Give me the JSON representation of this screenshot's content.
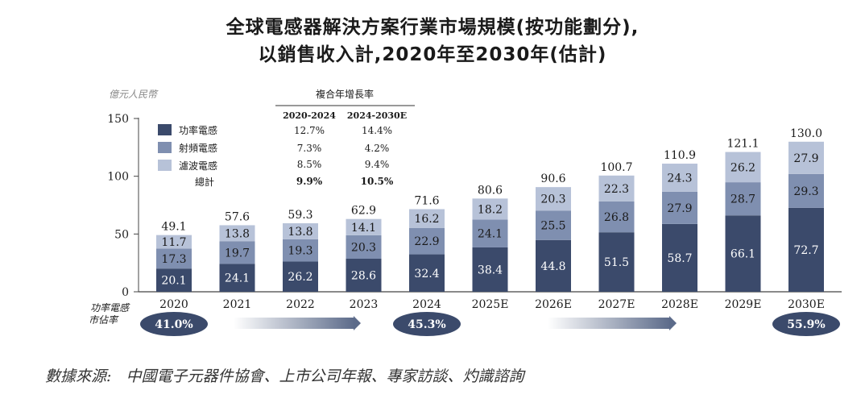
{
  "title_line1": "全球電感器解決方案行業市場規模(按功能劃分),",
  "title_line2": "以銷售收入計,2020年至2030年(估計)",
  "source_label": "數據來源:",
  "source_text": "中國電子元器件協會、上市公司年報、專家訪談、灼識諮詢",
  "colors": {
    "power": "#3b4a6b",
    "rf": "#7f8fb0",
    "filter": "#b7c2d8",
    "axis": "#444444",
    "arrow_dark": "#5c6b8a"
  },
  "chart_data": {
    "type": "bar",
    "stacked": true,
    "title": "",
    "ylabel": "億元人民幣",
    "ylim": [
      0,
      150
    ],
    "yticks": [
      0,
      50,
      100,
      150
    ],
    "categories": [
      "2020",
      "2021",
      "2022",
      "2023",
      "2024",
      "2025E",
      "2026E",
      "2027E",
      "2028E",
      "2029E",
      "2030E"
    ],
    "series": [
      {
        "name": "功率電感",
        "values": [
          20.1,
          24.1,
          26.2,
          28.6,
          32.4,
          38.4,
          44.8,
          51.5,
          58.7,
          66.1,
          72.7
        ]
      },
      {
        "name": "射頻電感",
        "values": [
          17.3,
          19.7,
          19.3,
          20.3,
          22.9,
          24.1,
          25.5,
          26.8,
          27.9,
          28.7,
          29.3
        ]
      },
      {
        "name": "濾波電感",
        "values": [
          11.7,
          13.8,
          13.8,
          14.1,
          16.2,
          18.2,
          20.3,
          22.3,
          24.3,
          26.2,
          27.9
        ]
      }
    ],
    "series_labels": [
      [
        "20.1",
        "24.1",
        "26.2",
        "28.6",
        "32.4",
        "38.4",
        "44.8",
        "51.5",
        "58.7",
        "66.1",
        "72.7"
      ],
      [
        "17.3",
        "19.7",
        "19.3",
        "20.3",
        "22.9",
        "24.1",
        "25.5",
        "26.8",
        "27.9",
        "28.7",
        "29.3"
      ],
      [
        "11.7",
        "13.8",
        "13.8",
        "14.1",
        "16.2",
        "18.2",
        "20.3",
        "22.3",
        "24.3",
        "26.2",
        "27.9"
      ]
    ],
    "totals": [
      49.1,
      57.6,
      59.3,
      62.9,
      71.6,
      80.6,
      90.6,
      100.7,
      110.9,
      121.1,
      130.0
    ],
    "total_labels": [
      "49.1",
      "57.6",
      "59.3",
      "62.9",
      "71.6",
      "80.6",
      "90.6",
      "100.7",
      "110.9",
      "121.1",
      "130.0"
    ],
    "legend_position": "top-left",
    "cagr_table": {
      "header": "複合年增長率",
      "columns": [
        "2020-2024",
        "2024-2030E"
      ],
      "rows": [
        {
          "label": "功率電感",
          "values": [
            "12.7%",
            "14.4%"
          ]
        },
        {
          "label": "射頻電感",
          "values": [
            "7.3%",
            "4.2%"
          ]
        },
        {
          "label": "濾波電感",
          "values": [
            "8.5%",
            "9.4%"
          ]
        },
        {
          "label": "總計",
          "values": [
            "9.9%",
            "10.5%"
          ]
        }
      ]
    },
    "market_share": {
      "label_line1": "功率電感",
      "label_line2": "市佔率",
      "points": [
        {
          "category": "2020",
          "value": "41.0%"
        },
        {
          "category": "2024",
          "value": "45.3%"
        },
        {
          "category": "2030E",
          "value": "55.9%"
        }
      ]
    }
  }
}
